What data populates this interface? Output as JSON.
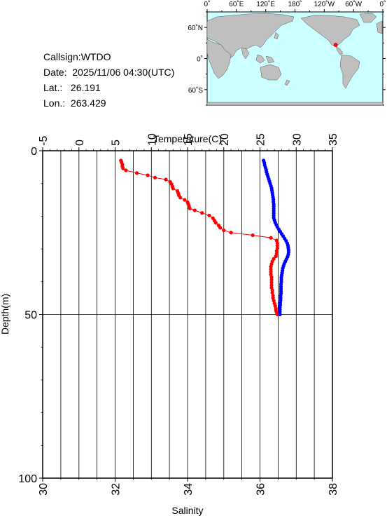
{
  "info": {
    "callsign": "Callsign:WTDO",
    "date": "Date:  2025/11/06 04:30(UTC)",
    "lat": "Lat.:   26.191",
    "lon": "Lon.:  263.429"
  },
  "map": {
    "lon_labels": [
      "0˚",
      "60˚E",
      "120˚E",
      "180˚",
      "120˚W",
      "60˚W",
      "0˚"
    ],
    "lat_labels": [
      "60˚N",
      "0˚",
      "60˚S"
    ],
    "ocean_color": "#ccffff",
    "land_color": "#bfbfbf",
    "marker_color": "#ff0000",
    "station": {
      "lat": 26.191,
      "lon": 263.429
    }
  },
  "chart_data": {
    "type": "scatter",
    "top_axis": {
      "title": "Temperature(C)",
      "range": [
        -5,
        35
      ],
      "tick_labels": [
        "-5",
        "0",
        "5",
        "10",
        "15",
        "20",
        "25",
        "30",
        "35"
      ]
    },
    "bottom_axis": {
      "title": "Salinity",
      "range": [
        30,
        38
      ],
      "tick_labels": [
        "30",
        "32",
        "34",
        "36",
        "38"
      ]
    },
    "y_axis": {
      "title": "Depth(m)",
      "range": [
        0,
        100
      ],
      "inverted": true,
      "tick_labels": [
        "0",
        "50",
        "100"
      ]
    },
    "grid": true,
    "series": [
      {
        "quantity": "temperature",
        "axis": "top",
        "color": "#ff0000",
        "points": [
          [
            5.8,
            3.0
          ],
          [
            5.9,
            3.6
          ],
          [
            6.0,
            4.2
          ],
          [
            6.0,
            4.8
          ],
          [
            6.1,
            5.4
          ],
          [
            6.5,
            6.0
          ],
          [
            8.0,
            6.8
          ],
          [
            9.5,
            7.5
          ],
          [
            10.5,
            8.2
          ],
          [
            12.0,
            8.8
          ],
          [
            12.6,
            9.5
          ],
          [
            12.8,
            10.2
          ],
          [
            12.9,
            10.9
          ],
          [
            13.0,
            11.5
          ],
          [
            13.6,
            12.3
          ],
          [
            13.7,
            12.9
          ],
          [
            13.8,
            13.6
          ],
          [
            14.0,
            14.3
          ],
          [
            14.6,
            15.0
          ],
          [
            15.0,
            15.7
          ],
          [
            15.1,
            16.3
          ],
          [
            15.2,
            16.9
          ],
          [
            15.3,
            17.6
          ],
          [
            16.0,
            18.2
          ],
          [
            17.0,
            19.0
          ],
          [
            18.0,
            19.8
          ],
          [
            18.5,
            20.6
          ],
          [
            18.7,
            21.3
          ],
          [
            18.9,
            22.0
          ],
          [
            19.3,
            22.8
          ],
          [
            19.5,
            23.5
          ],
          [
            20.0,
            24.3
          ],
          [
            21.0,
            25.0
          ],
          [
            24.0,
            25.8
          ],
          [
            26.5,
            26.6
          ],
          [
            27.3,
            27.4
          ],
          [
            27.4,
            28.2
          ],
          [
            27.4,
            29.0
          ],
          [
            27.4,
            29.8
          ],
          [
            27.3,
            30.6
          ],
          [
            27.3,
            31.4
          ],
          [
            27.2,
            32.2
          ],
          [
            26.9,
            33.0
          ],
          [
            26.7,
            33.8
          ],
          [
            26.6,
            34.6
          ],
          [
            26.5,
            35.4
          ],
          [
            26.5,
            36.2
          ],
          [
            26.5,
            37.0
          ],
          [
            26.5,
            37.8
          ],
          [
            26.6,
            38.6
          ],
          [
            26.6,
            39.4
          ],
          [
            26.6,
            40.2
          ],
          [
            26.6,
            41.0
          ],
          [
            26.6,
            41.8
          ],
          [
            26.7,
            42.6
          ],
          [
            26.7,
            43.4
          ],
          [
            26.8,
            44.2
          ],
          [
            26.8,
            45.0
          ],
          [
            26.9,
            45.8
          ],
          [
            27.0,
            46.6
          ],
          [
            27.1,
            47.4
          ],
          [
            27.2,
            48.2
          ],
          [
            27.2,
            48.8
          ],
          [
            27.3,
            49.4
          ],
          [
            27.4,
            50.0
          ]
        ]
      },
      {
        "quantity": "salinity",
        "axis": "bottom",
        "color": "#0000ff",
        "points": [
          [
            36.1,
            3.0
          ],
          [
            36.12,
            3.7
          ],
          [
            36.13,
            4.4
          ],
          [
            36.15,
            5.1
          ],
          [
            36.17,
            5.8
          ],
          [
            36.18,
            6.5
          ],
          [
            36.2,
            7.2
          ],
          [
            36.22,
            7.9
          ],
          [
            36.24,
            8.6
          ],
          [
            36.26,
            9.3
          ],
          [
            36.28,
            10.0
          ],
          [
            36.3,
            10.7
          ],
          [
            36.32,
            11.4
          ],
          [
            36.33,
            12.1
          ],
          [
            36.34,
            12.8
          ],
          [
            36.35,
            13.5
          ],
          [
            36.36,
            14.2
          ],
          [
            36.37,
            14.9
          ],
          [
            36.37,
            15.6
          ],
          [
            36.38,
            16.3
          ],
          [
            36.38,
            17.0
          ],
          [
            36.38,
            17.7
          ],
          [
            36.38,
            18.4
          ],
          [
            36.38,
            19.1
          ],
          [
            36.38,
            19.8
          ],
          [
            36.38,
            20.5
          ],
          [
            36.4,
            21.2
          ],
          [
            36.42,
            21.9
          ],
          [
            36.45,
            22.6
          ],
          [
            36.48,
            23.3
          ],
          [
            36.52,
            24.0
          ],
          [
            36.56,
            24.7
          ],
          [
            36.6,
            25.4
          ],
          [
            36.64,
            26.1
          ],
          [
            36.68,
            26.8
          ],
          [
            36.72,
            27.5
          ],
          [
            36.75,
            28.2
          ],
          [
            36.77,
            28.9
          ],
          [
            36.78,
            29.6
          ],
          [
            36.79,
            30.3
          ],
          [
            36.79,
            31.0
          ],
          [
            36.78,
            31.7
          ],
          [
            36.76,
            32.4
          ],
          [
            36.73,
            33.1
          ],
          [
            36.7,
            33.8
          ],
          [
            36.67,
            34.5
          ],
          [
            36.65,
            35.2
          ],
          [
            36.63,
            35.9
          ],
          [
            36.62,
            36.6
          ],
          [
            36.61,
            37.3
          ],
          [
            36.6,
            38.0
          ],
          [
            36.59,
            38.7
          ],
          [
            36.59,
            39.4
          ],
          [
            36.59,
            40.1
          ],
          [
            36.58,
            40.8
          ],
          [
            36.58,
            41.5
          ],
          [
            36.58,
            42.2
          ],
          [
            36.58,
            42.9
          ],
          [
            36.58,
            43.6
          ],
          [
            36.57,
            44.3
          ],
          [
            36.57,
            45.0
          ],
          [
            36.57,
            45.7
          ],
          [
            36.56,
            46.4
          ],
          [
            36.56,
            47.1
          ],
          [
            36.55,
            47.8
          ],
          [
            36.55,
            48.5
          ],
          [
            36.55,
            49.2
          ],
          [
            36.55,
            50.0
          ]
        ]
      }
    ]
  }
}
